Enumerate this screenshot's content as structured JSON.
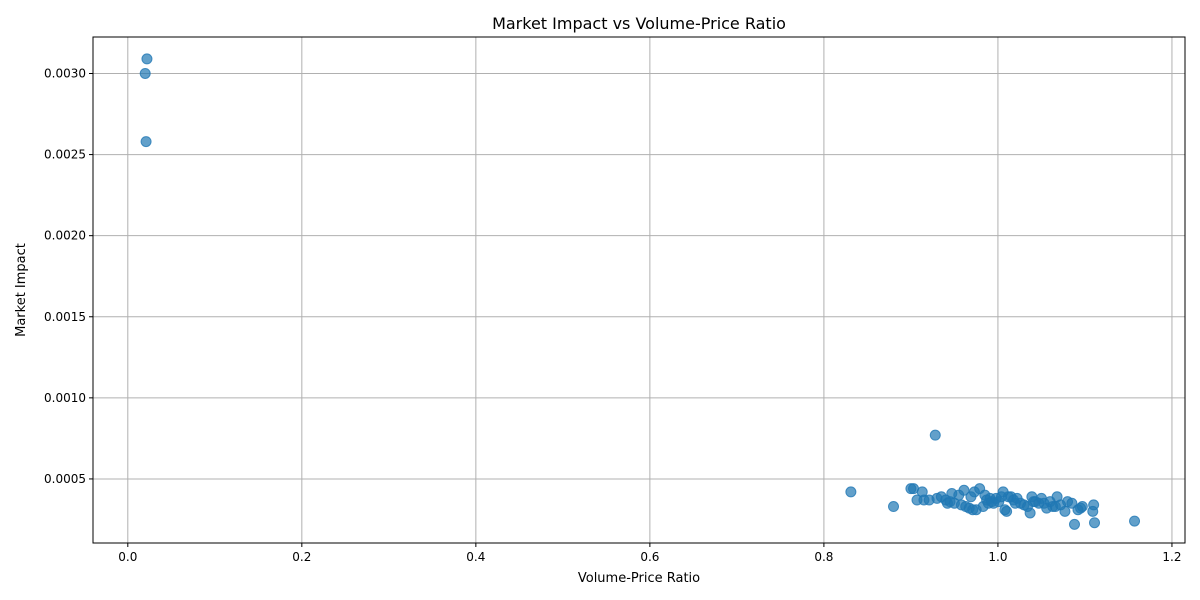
{
  "chart_data": {
    "type": "scatter",
    "title": "Market Impact vs Volume-Price Ratio",
    "xlabel": "Volume-Price Ratio",
    "ylabel": "Market Impact",
    "xlim": [
      -0.04,
      1.215
    ],
    "ylim": [
      0.000105,
      0.003225
    ],
    "x_ticks": [
      0.0,
      0.2,
      0.4,
      0.6,
      0.8,
      1.0,
      1.2
    ],
    "x_tick_labels": [
      "0.0",
      "0.2",
      "0.4",
      "0.6",
      "0.8",
      "1.0",
      "1.2"
    ],
    "y_ticks": [
      0.0005,
      0.001,
      0.0015,
      0.002,
      0.0025,
      0.003
    ],
    "y_tick_labels": [
      "0.0005",
      "0.0010",
      "0.0015",
      "0.0020",
      "0.0025",
      "0.0030"
    ],
    "grid": true,
    "point_color": "#1f77b4",
    "points": [
      [
        0.022,
        0.00309
      ],
      [
        0.02,
        0.003
      ],
      [
        0.021,
        0.00258
      ],
      [
        0.928,
        0.00077
      ],
      [
        0.831,
        0.00042
      ],
      [
        0.88,
        0.00033
      ],
      [
        0.9,
        0.00044
      ],
      [
        0.903,
        0.00044
      ],
      [
        0.907,
        0.00037
      ],
      [
        0.913,
        0.00042
      ],
      [
        0.915,
        0.00037
      ],
      [
        0.921,
        0.00037
      ],
      [
        0.93,
        0.00038
      ],
      [
        0.935,
        0.00039
      ],
      [
        0.94,
        0.00037
      ],
      [
        0.942,
        0.00035
      ],
      [
        0.945,
        0.00036
      ],
      [
        0.947,
        0.00041
      ],
      [
        0.95,
        0.00035
      ],
      [
        0.955,
        0.0004
      ],
      [
        0.958,
        0.00034
      ],
      [
        0.961,
        0.00043
      ],
      [
        0.963,
        0.00033
      ],
      [
        0.967,
        0.00032
      ],
      [
        0.969,
        0.00039
      ],
      [
        0.971,
        0.00031
      ],
      [
        0.973,
        0.00042
      ],
      [
        0.975,
        0.00031
      ],
      [
        0.979,
        0.00044
      ],
      [
        0.983,
        0.00033
      ],
      [
        0.985,
        0.0004
      ],
      [
        0.987,
        0.00037
      ],
      [
        0.989,
        0.00035
      ],
      [
        0.991,
        0.00038
      ],
      [
        0.993,
        0.00036
      ],
      [
        0.995,
        0.00035
      ],
      [
        0.998,
        0.00038
      ],
      [
        1.001,
        0.00036
      ],
      [
        1.004,
        0.00039
      ],
      [
        1.006,
        0.00042
      ],
      [
        1.008,
        0.00031
      ],
      [
        1.01,
        0.0003
      ],
      [
        1.012,
        0.00039
      ],
      [
        1.015,
        0.00039
      ],
      [
        1.018,
        0.00037
      ],
      [
        1.02,
        0.00035
      ],
      [
        1.022,
        0.00038
      ],
      [
        1.026,
        0.00035
      ],
      [
        1.03,
        0.00034
      ],
      [
        1.034,
        0.00033
      ],
      [
        1.037,
        0.00029
      ],
      [
        1.039,
        0.00039
      ],
      [
        1.041,
        0.00036
      ],
      [
        1.043,
        0.00036
      ],
      [
        1.047,
        0.00035
      ],
      [
        1.05,
        0.00038
      ],
      [
        1.053,
        0.00035
      ],
      [
        1.056,
        0.00032
      ],
      [
        1.06,
        0.00036
      ],
      [
        1.063,
        0.00033
      ],
      [
        1.066,
        0.00033
      ],
      [
        1.068,
        0.00039
      ],
      [
        1.072,
        0.00034
      ],
      [
        1.077,
        0.0003
      ],
      [
        1.08,
        0.00036
      ],
      [
        1.085,
        0.00035
      ],
      [
        1.088,
        0.00022
      ],
      [
        1.092,
        0.00031
      ],
      [
        1.095,
        0.00032
      ],
      [
        1.097,
        0.00033
      ],
      [
        1.109,
        0.0003
      ],
      [
        1.11,
        0.00034
      ],
      [
        1.111,
        0.00023
      ],
      [
        1.157,
        0.00024
      ]
    ]
  }
}
